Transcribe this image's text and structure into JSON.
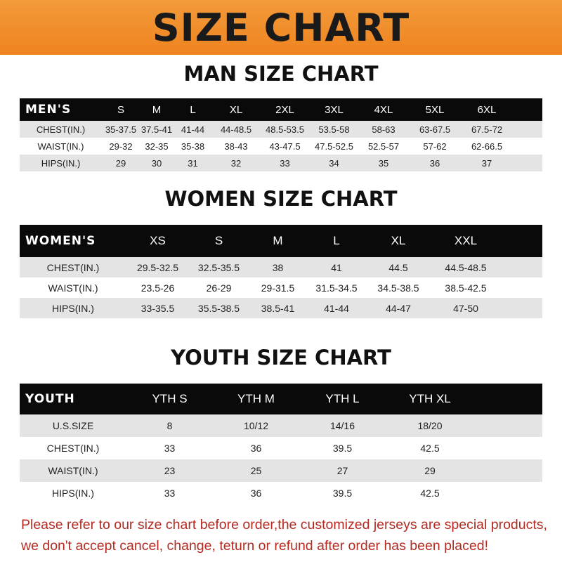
{
  "title": "SIZE CHART",
  "men": {
    "title": "MAN SIZE CHART",
    "header": "MEN'S",
    "sizes": [
      "S",
      "M",
      "L",
      "XL",
      "2XL",
      "3XL",
      "4XL",
      "5XL",
      "6XL"
    ],
    "rows": [
      {
        "label": "CHEST(IN.)",
        "values": [
          "35-37.5",
          "37.5-41",
          "41-44",
          "44-48.5",
          "48.5-53.5",
          "53.5-58",
          "58-63",
          "63-67.5",
          "67.5-72"
        ]
      },
      {
        "label": "WAIST(IN.)",
        "values": [
          "29-32",
          "32-35",
          "35-38",
          "38-43",
          "43-47.5",
          "47.5-52.5",
          "52.5-57",
          "57-62",
          "62-66.5"
        ]
      },
      {
        "label": "HIPS(IN.)",
        "values": [
          "29",
          "30",
          "31",
          "32",
          "33",
          "34",
          "35",
          "36",
          "37"
        ]
      }
    ]
  },
  "women": {
    "title": "WOMEN SIZE CHART",
    "header": "WOMEN'S",
    "sizes": [
      "XS",
      "S",
      "M",
      "L",
      "XL",
      "XXL"
    ],
    "rows": [
      {
        "label": "CHEST(IN.)",
        "values": [
          "29.5-32.5",
          "32.5-35.5",
          "38",
          "41",
          "44.5",
          "44.5-48.5"
        ]
      },
      {
        "label": "WAIST(IN.)",
        "values": [
          "23.5-26",
          "26-29",
          "29-31.5",
          "31.5-34.5",
          "34.5-38.5",
          "38.5-42.5"
        ]
      },
      {
        "label": "HIPS(IN.)",
        "values": [
          "33-35.5",
          "35.5-38.5",
          "38.5-41",
          "41-44",
          "44-47",
          "47-50"
        ]
      }
    ]
  },
  "youth": {
    "title": "YOUTH SIZE CHART",
    "header": "YOUTH",
    "sizes": [
      "YTH S",
      "YTH M",
      "YTH L",
      "YTH XL"
    ],
    "rows": [
      {
        "label": "U.S.SIZE",
        "values": [
          "8",
          "10/12",
          "14/16",
          "18/20"
        ]
      },
      {
        "label": "CHEST(IN.)",
        "values": [
          "33",
          "36",
          "39.5",
          "42.5"
        ]
      },
      {
        "label": "WAIST(IN.)",
        "values": [
          "23",
          "25",
          "27",
          "29"
        ]
      },
      {
        "label": "HIPS(IN.)",
        "values": [
          "33",
          "36",
          "39.5",
          "42.5"
        ]
      }
    ]
  },
  "note": [
    "Please refer to our size chart before order,the customized jerseys are special products,",
    "we don't accept cancel, change, teturn or refund after order has been placed!"
  ],
  "colors": {
    "banner": "#ee8420",
    "header_row": "#0a0a0a",
    "stripe": "#e4e4e4",
    "note": "#b52a22"
  }
}
